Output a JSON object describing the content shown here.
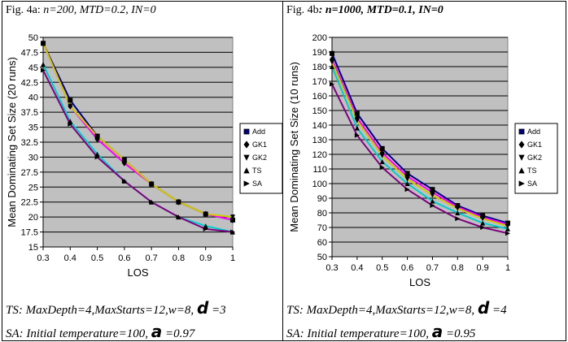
{
  "panels": [
    {
      "id": "a",
      "fig_label": "Fig. 4a: ",
      "title": "n=200, MTD=0.2, IN=0",
      "ylabel": "Mean Dominating Set Size (20 runs)",
      "xlabel": "LOS",
      "note_ts": "TS: MaxDepth=4,MaxStarts=12,w=8, ",
      "note_ts_sym": "d",
      "note_ts_val": " =3",
      "note_sa": "SA: Initial temperature=100, ",
      "note_sa_sym": "a",
      "note_sa_val": " =0.97"
    },
    {
      "id": "b",
      "fig_label": "Fig. 4b",
      "title": ": n=1000, MTD=0.1, IN=0",
      "ylabel": "Mean Dominating Set Size (10 runs)",
      "xlabel": "LOS",
      "note_ts": "TS: MaxDepth=4,MaxStarts=12,w=8, ",
      "note_ts_sym": "d",
      "note_ts_val": " =4",
      "note_sa": "SA: Initial  temperature=100, ",
      "note_sa_sym": "a",
      "note_sa_val": " =0.95"
    }
  ],
  "chart_data": [
    {
      "type": "line",
      "title": "n=200, MTD=0.2, IN=0",
      "xlabel": "LOS",
      "ylabel": "Mean Dominating Set Size (20 runs)",
      "x": [
        0.3,
        0.4,
        0.5,
        0.6,
        0.7,
        0.8,
        0.9,
        1
      ],
      "x_ticks": [
        "0.3",
        "0.4",
        "0.5",
        "0.6",
        "0.7",
        "0.8",
        "0.9",
        "1"
      ],
      "ylim": [
        15,
        50
      ],
      "y_ticks": [
        15,
        17.5,
        20,
        22.5,
        25,
        27.5,
        30,
        32.5,
        35,
        37.5,
        40,
        42.5,
        45,
        47.5,
        50
      ],
      "y_tick_labels": [
        "15",
        "17.5",
        "20",
        "22.5",
        "25",
        "27.5",
        "30",
        "32.5",
        "35",
        "37.5",
        "40",
        "42.5",
        "45",
        "47.5",
        "50"
      ],
      "grid": "horizontal",
      "legend_position": "right",
      "background": "#c0c0c0",
      "series": [
        {
          "name": "Add",
          "color": "#000080",
          "marker": "square",
          "values": [
            49,
            39.5,
            33.5,
            29.5,
            25.5,
            22.5,
            20.5,
            19.5
          ]
        },
        {
          "name": "GK1",
          "color": "#ff00ff",
          "marker": "diamond",
          "values": [
            49,
            38.5,
            33,
            29,
            25.5,
            22.5,
            20.5,
            19.5
          ]
        },
        {
          "name": "GK2",
          "color": "#cccc00",
          "marker": "triangle-down",
          "values": [
            49,
            38.5,
            33.5,
            29.5,
            25.5,
            22.5,
            20.5,
            20
          ]
        },
        {
          "name": "TS",
          "color": "#00cccc",
          "marker": "triangle-up",
          "values": [
            45.5,
            36,
            30.5,
            26,
            22.5,
            20,
            18.5,
            17.5
          ]
        },
        {
          "name": "SA",
          "color": "#800080",
          "marker": "triangle-right",
          "values": [
            44.5,
            35.5,
            30,
            26,
            22.5,
            20,
            18,
            17.5
          ]
        }
      ]
    },
    {
      "type": "line",
      "title": "n=1000, MTD=0.1, IN=0",
      "xlabel": "LOS",
      "ylabel": "Mean Dominating Set Size (10 runs)",
      "x": [
        0.3,
        0.4,
        0.5,
        0.6,
        0.7,
        0.8,
        0.9,
        1
      ],
      "x_ticks": [
        "0.3",
        "0.4",
        "0.5",
        "0.6",
        "0.7",
        "0.8",
        "0.9",
        "1"
      ],
      "ylim": [
        50,
        200
      ],
      "y_ticks": [
        50,
        60,
        70,
        80,
        90,
        100,
        110,
        120,
        130,
        140,
        150,
        160,
        170,
        180,
        190,
        200
      ],
      "y_tick_labels": [
        "50",
        "60",
        "70",
        "80",
        "90",
        "100",
        "110",
        "120",
        "130",
        "140",
        "150",
        "160",
        "170",
        "180",
        "190",
        "200"
      ],
      "grid": "horizontal",
      "legend_position": "right",
      "background": "#c0c0c0",
      "series": [
        {
          "name": "Add",
          "color": "#000080",
          "marker": "square",
          "values": [
            189,
            148,
            124,
            107,
            96,
            85,
            78,
            73
          ]
        },
        {
          "name": "GK1",
          "color": "#ff00ff",
          "marker": "diamond",
          "values": [
            185,
            145,
            121,
            105,
            94,
            84,
            77,
            72
          ]
        },
        {
          "name": "GK2",
          "color": "#cccc00",
          "marker": "triangle-down",
          "values": [
            183,
            143,
            119,
            103,
            92,
            83,
            76,
            71
          ]
        },
        {
          "name": "TS",
          "color": "#00cccc",
          "marker": "triangle-up",
          "values": [
            180,
            138,
            115,
            100,
            88,
            80,
            73,
            69
          ]
        },
        {
          "name": "SA",
          "color": "#800080",
          "marker": "triangle-right",
          "values": [
            168,
            133,
            111,
            96,
            85,
            76,
            70,
            66
          ]
        }
      ]
    }
  ]
}
